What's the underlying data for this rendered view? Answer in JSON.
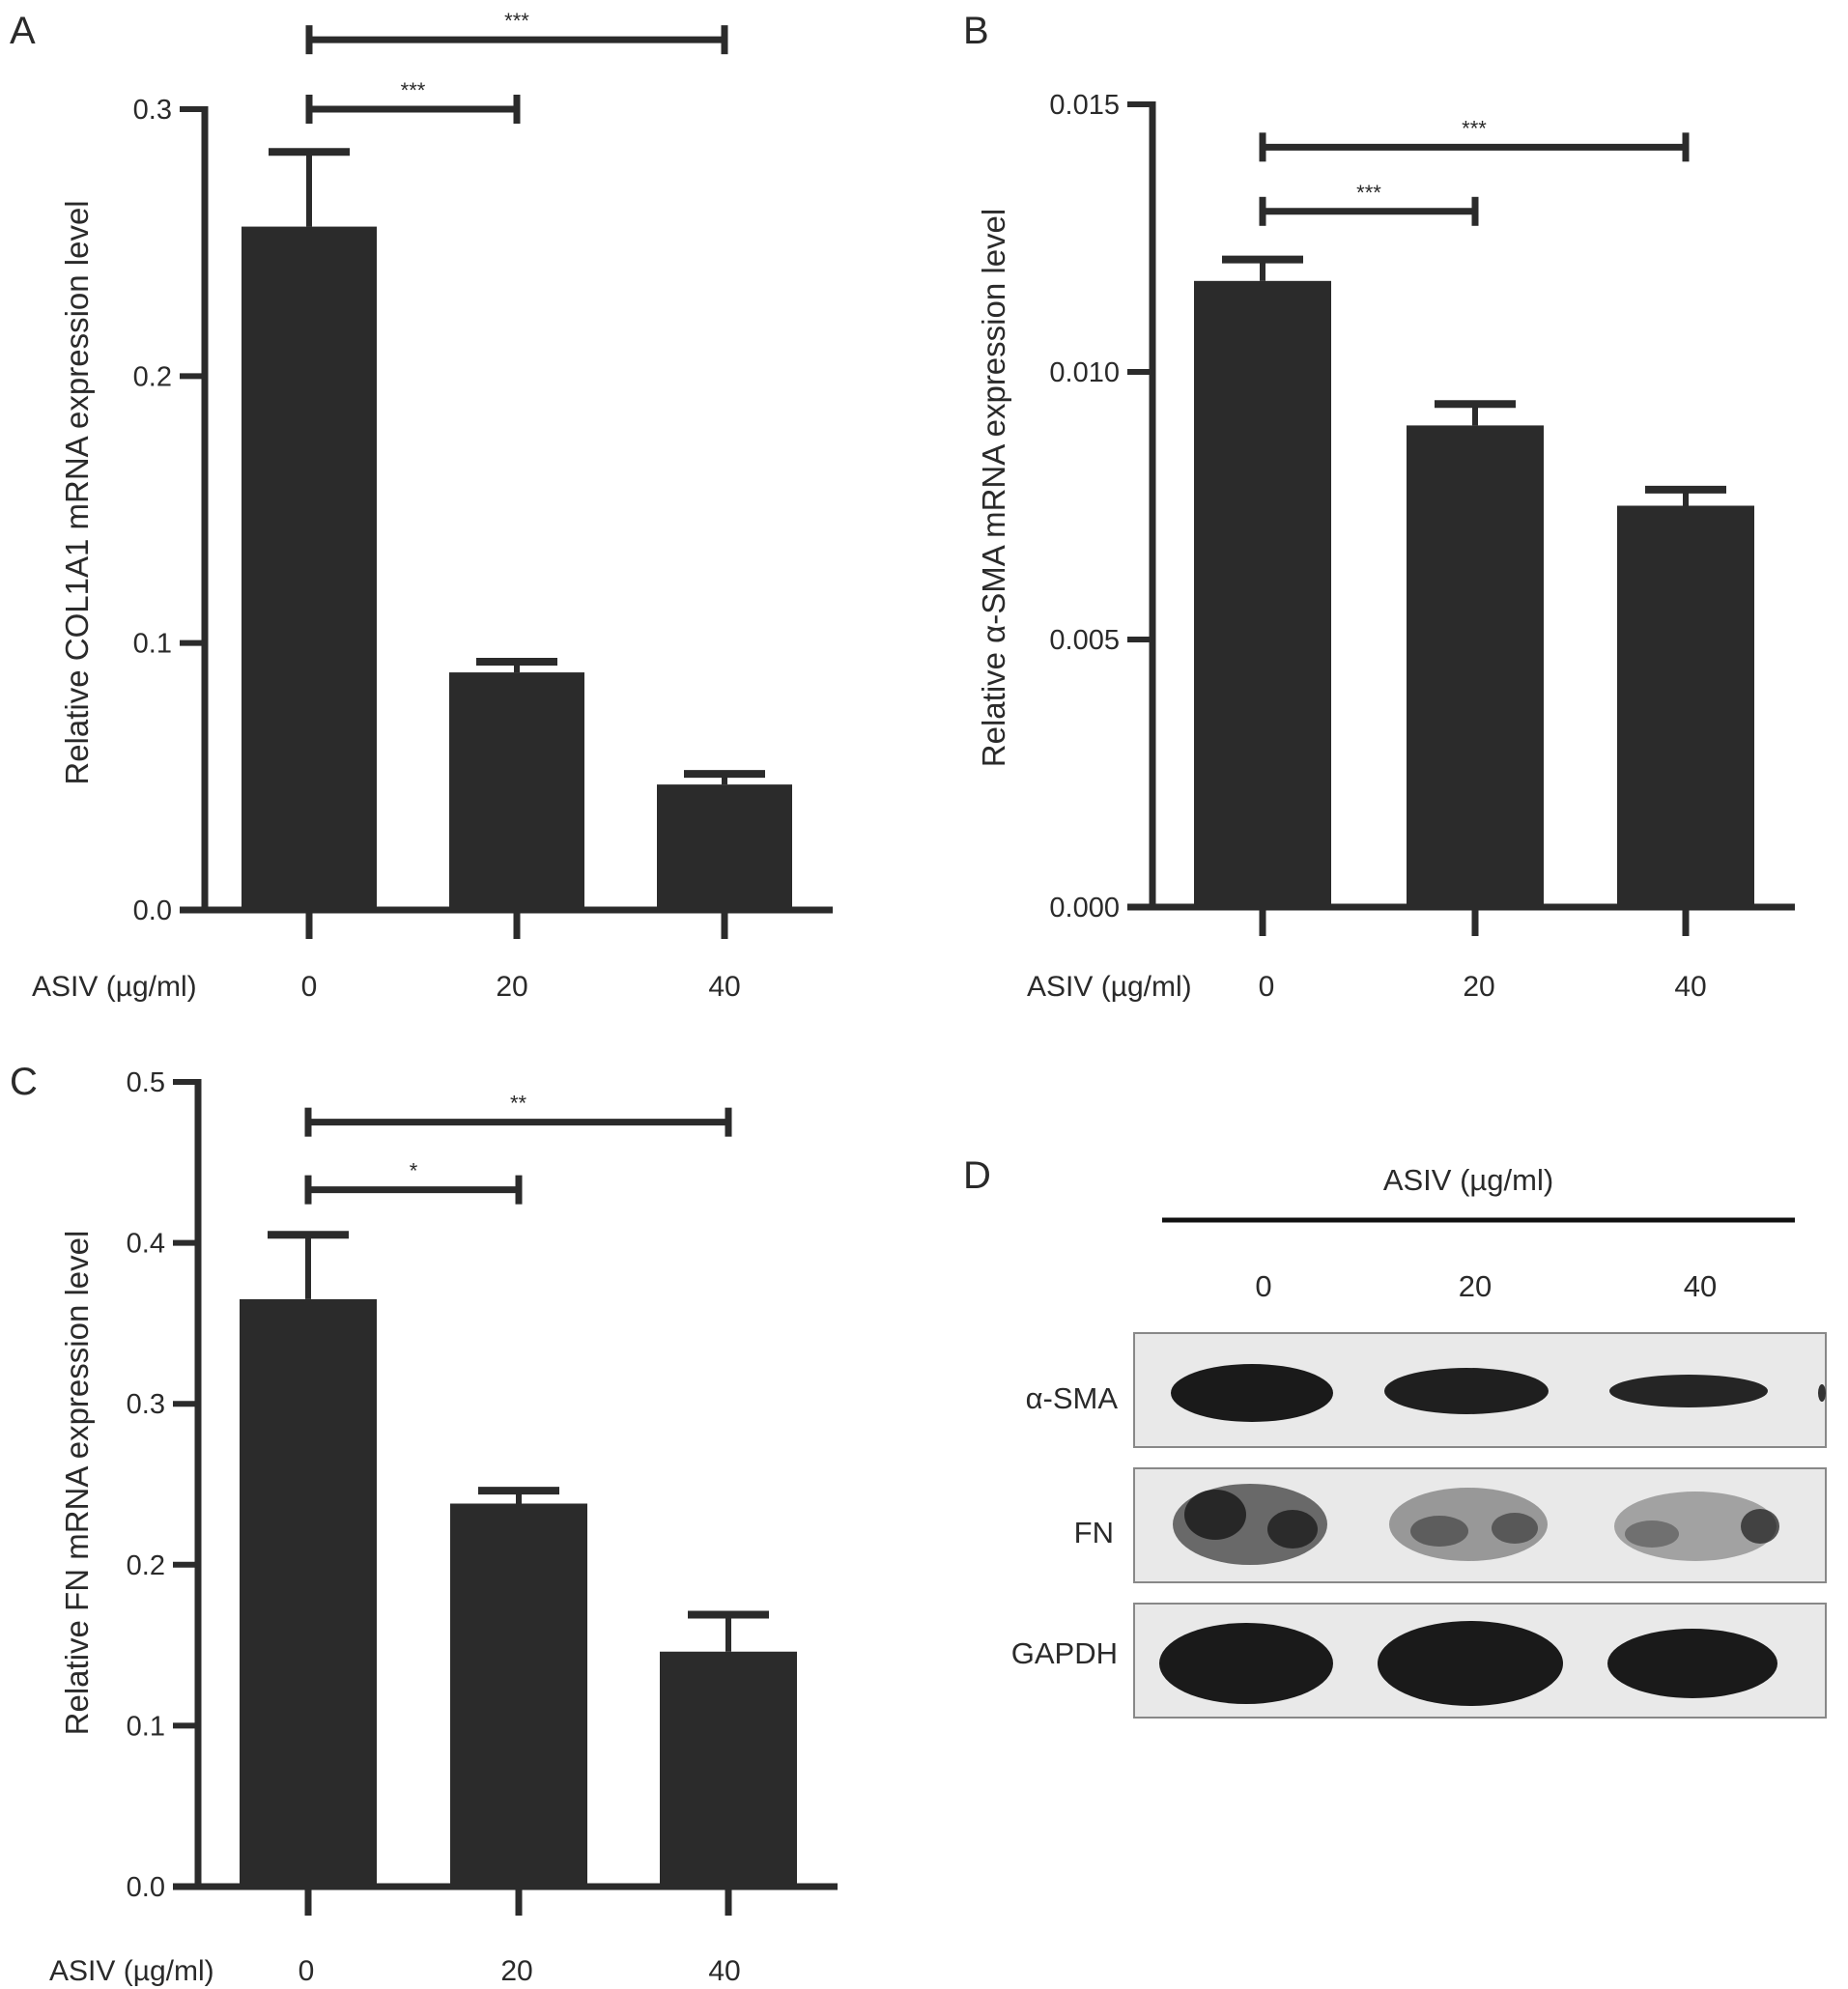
{
  "chart_data": [
    {
      "panel": "A",
      "type": "bar",
      "categories": [
        "0",
        "20",
        "40"
      ],
      "values": [
        0.256,
        0.089,
        0.047
      ],
      "errors": [
        0.028,
        0.004,
        0.004
      ],
      "ylabel": "Relative COL1A1 mRNA expression level",
      "xlabel": "ASIV (µg/ml)",
      "ylim": [
        0,
        0.3
      ],
      "yticks": [
        "0.0",
        "0.1",
        "0.2",
        "0.3"
      ],
      "significance": [
        {
          "from": 0,
          "to": 1,
          "label": "***",
          "y": 0.3
        },
        {
          "from": 0,
          "to": 2,
          "label": "***",
          "y": 0.326
        }
      ]
    },
    {
      "panel": "B",
      "type": "bar",
      "categories": [
        "0",
        "20",
        "40"
      ],
      "values": [
        0.0117,
        0.009,
        0.0075
      ],
      "errors": [
        0.0004,
        0.0004,
        0.0003
      ],
      "ylabel": "Relative α-SMA mRNA expression level",
      "xlabel": "ASIV (µg/ml)",
      "ylim": [
        0,
        0.015
      ],
      "yticks": [
        "0.000",
        "0.005",
        "0.010",
        "0.015"
      ],
      "significance": [
        {
          "from": 0,
          "to": 1,
          "label": "***",
          "y": 0.013
        },
        {
          "from": 0,
          "to": 2,
          "label": "***",
          "y": 0.0142
        }
      ]
    },
    {
      "panel": "C",
      "type": "bar",
      "categories": [
        "0",
        "20",
        "40"
      ],
      "values": [
        0.365,
        0.238,
        0.146
      ],
      "errors": [
        0.04,
        0.008,
        0.023
      ],
      "ylabel": "Relative FN mRNA expression level",
      "xlabel": "ASIV (µg/ml)",
      "ylim": [
        0,
        0.5
      ],
      "yticks": [
        "0.0",
        "0.1",
        "0.2",
        "0.3",
        "0.4",
        "0.5"
      ],
      "significance": [
        {
          "from": 0,
          "to": 1,
          "label": "*",
          "y": 0.433
        },
        {
          "from": 0,
          "to": 2,
          "label": "**",
          "y": 0.475
        }
      ]
    }
  ],
  "blot": {
    "panel": "D",
    "header": "ASIV (µg/ml)",
    "lanes": [
      "0",
      "20",
      "40"
    ],
    "rows": [
      "α-SMA",
      "FN",
      "GAPDH"
    ]
  },
  "colors": {
    "bar": "#2b2b2b",
    "axis": "#2b2b2b",
    "text": "#2a2a2a",
    "blot_bg": "#e9e9e9"
  }
}
